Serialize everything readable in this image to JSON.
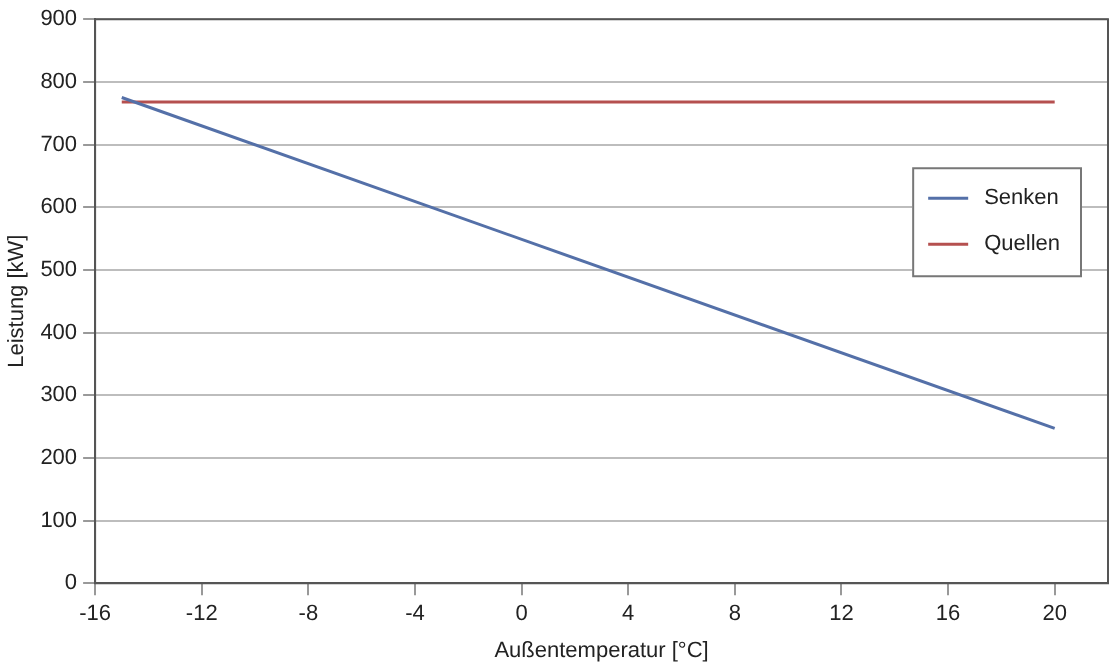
{
  "chart_data": {
    "type": "line",
    "xlabel": "Außentemperatur [°C]",
    "ylabel": "Leistung [kW]",
    "x": [
      -15,
      20
    ],
    "xlim": [
      -16,
      22
    ],
    "xticks": [
      -16,
      -12,
      -8,
      -4,
      0,
      4,
      8,
      12,
      16,
      20
    ],
    "ylim": [
      0,
      900
    ],
    "yticks": [
      0,
      100,
      200,
      300,
      400,
      500,
      600,
      700,
      800,
      900
    ],
    "grid": "y",
    "legend": "right",
    "marker": "none",
    "line_style": "solid",
    "series": [
      {
        "name": "Senken",
        "color": "#5470a8",
        "values": [
          775,
          247
        ]
      },
      {
        "name": "Quellen",
        "color": "#b5504f",
        "values": [
          768,
          768
        ]
      }
    ]
  }
}
